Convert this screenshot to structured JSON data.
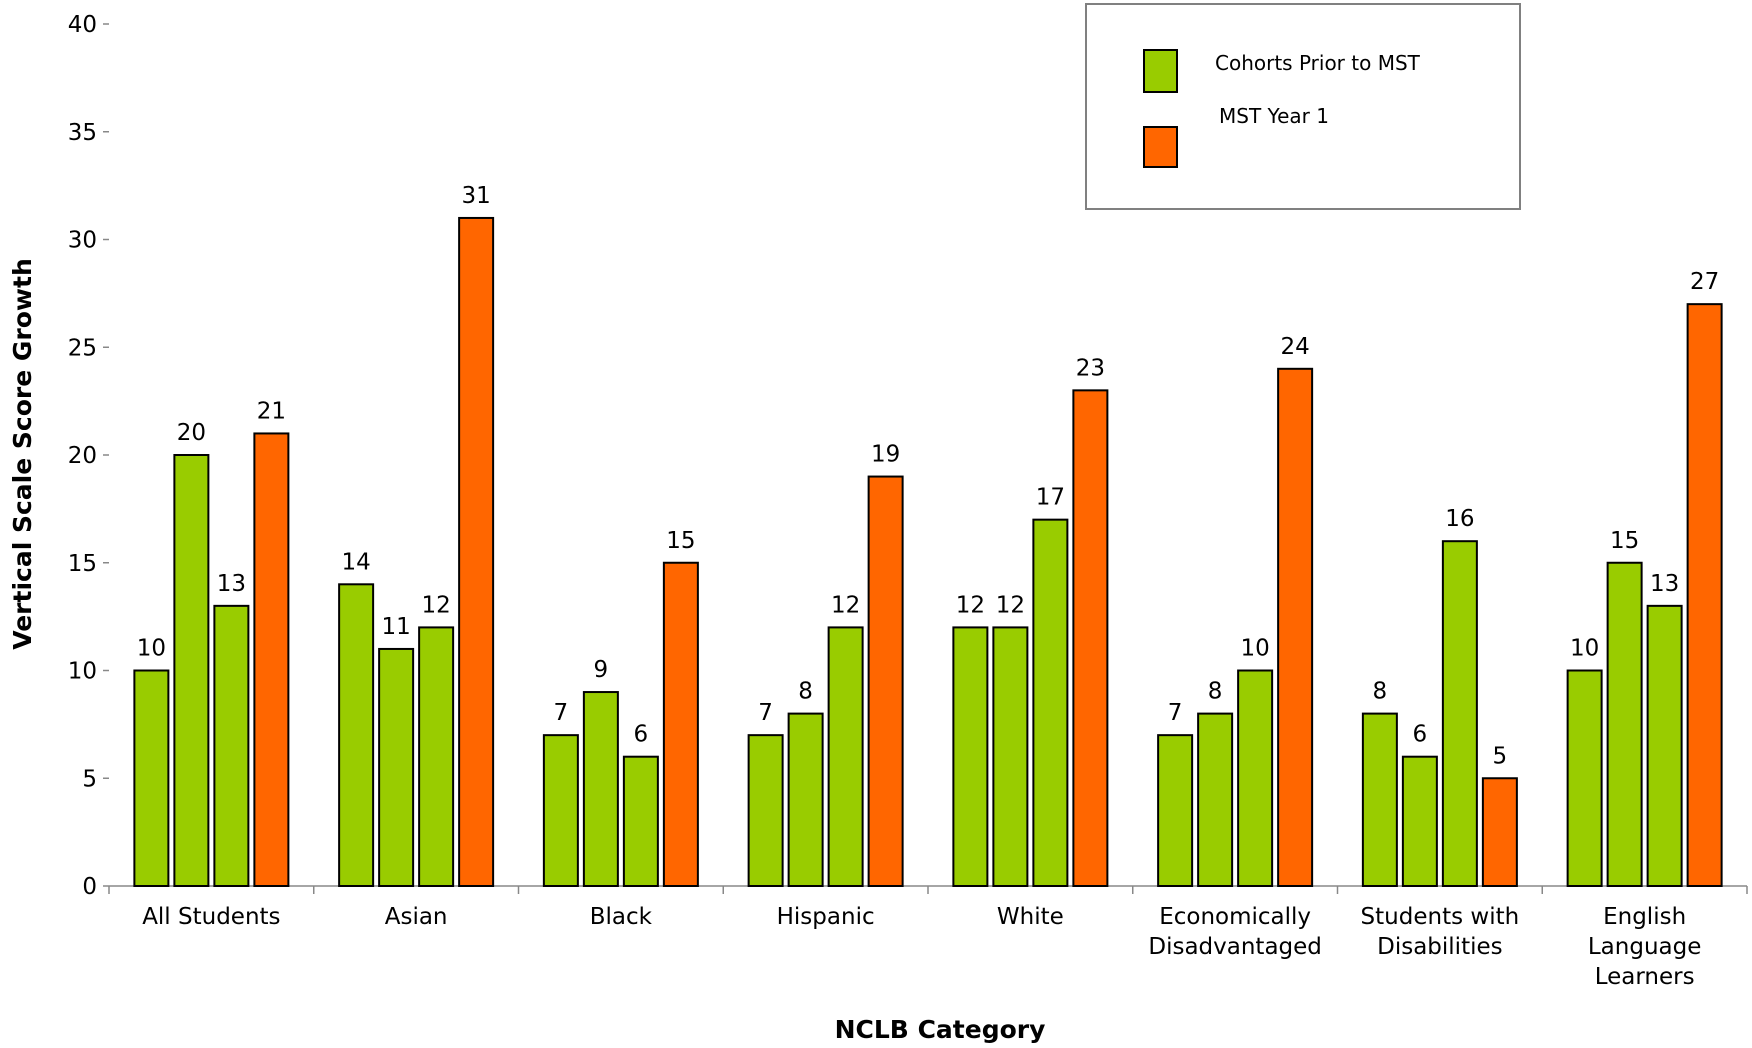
{
  "chart_data": {
    "type": "bar",
    "xlabel": "NCLB Category",
    "ylabel": "Vertical Scale Score Growth",
    "ylim": [
      0,
      40
    ],
    "yticks": [
      0,
      5,
      10,
      15,
      20,
      25,
      30,
      35,
      40
    ],
    "grid": false,
    "legend_position": "top-right",
    "categories": [
      [
        "All Students"
      ],
      [
        "Asian"
      ],
      [
        "Black"
      ],
      [
        "Hispanic"
      ],
      [
        "White"
      ],
      [
        "Economically",
        "Disadvantaged"
      ],
      [
        "Students with",
        "Disabilities"
      ],
      [
        "English",
        "Language",
        "Learners"
      ]
    ],
    "bar_types": [
      "Cohorts Prior to MST",
      "Cohorts Prior to MST",
      "Cohorts Prior to MST",
      "MST Year 1"
    ],
    "values": [
      [
        10,
        20,
        13,
        21
      ],
      [
        14,
        11,
        12,
        31
      ],
      [
        7,
        9,
        6,
        15
      ],
      [
        7,
        8,
        12,
        19
      ],
      [
        12,
        12,
        17,
        23
      ],
      [
        7,
        8,
        10,
        24
      ],
      [
        8,
        6,
        16,
        5
      ],
      [
        10,
        15,
        13,
        27
      ]
    ],
    "legend": [
      {
        "label": "Cohorts Prior to MST",
        "color": "#99cc00"
      },
      {
        "label": "MST Year 1",
        "color": "#ff6600"
      }
    ],
    "colors": {
      "Cohorts Prior to MST": "#99cc00",
      "MST Year 1": "#ff6600"
    }
  }
}
